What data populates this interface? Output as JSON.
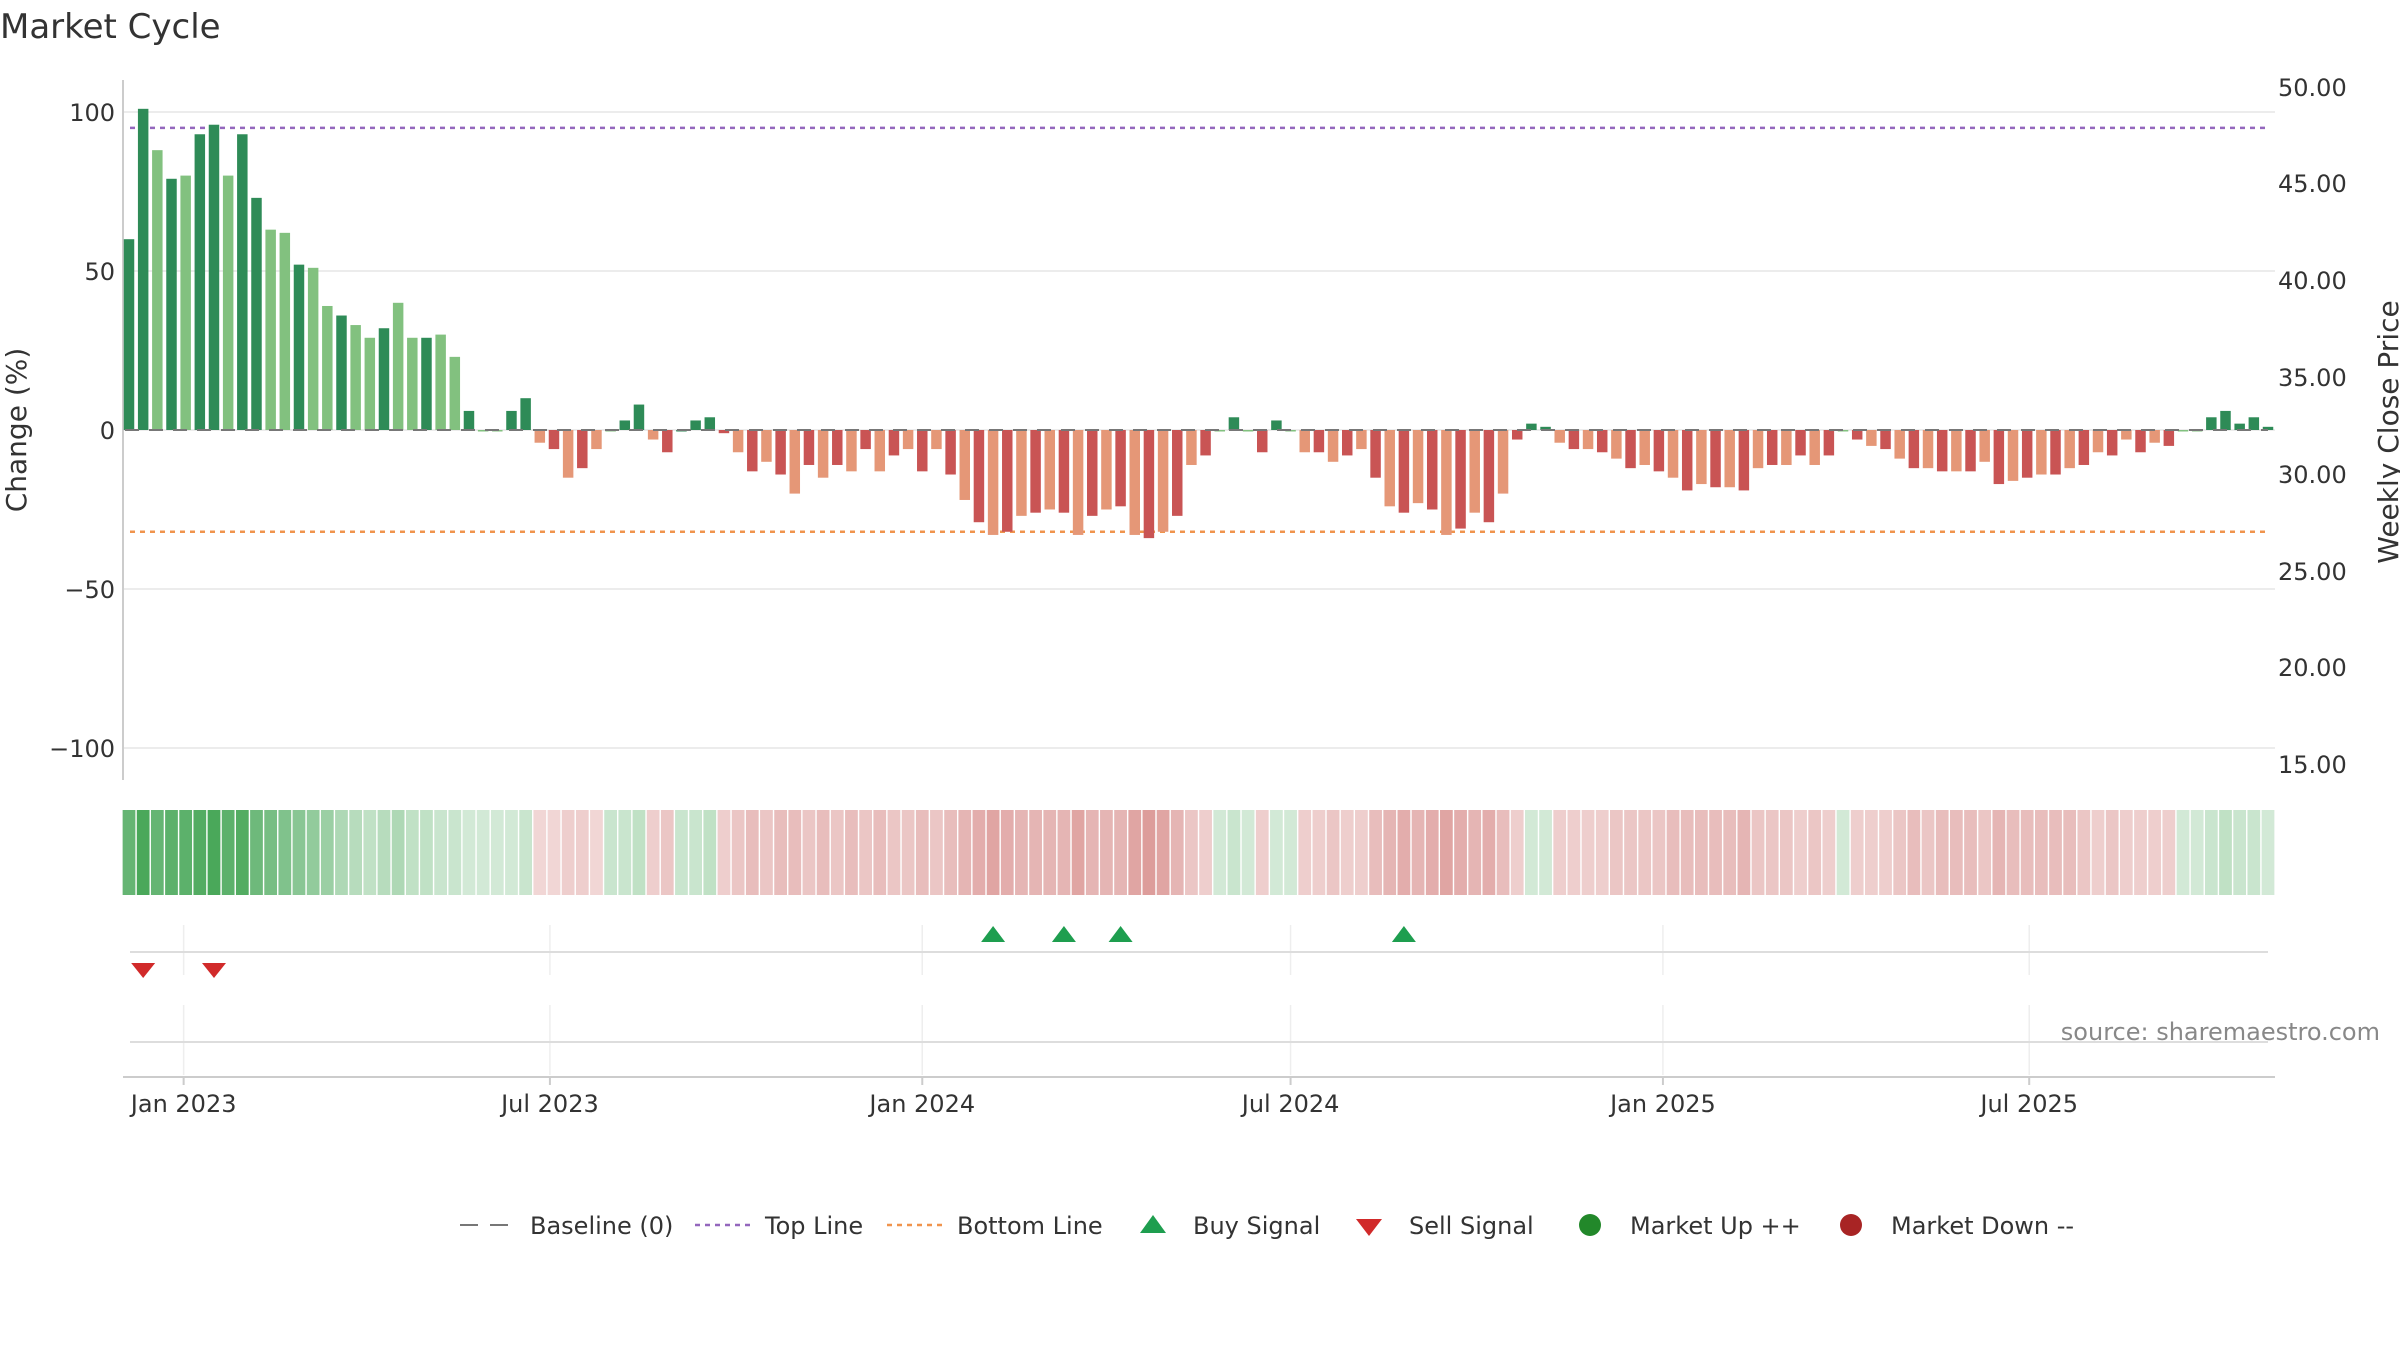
{
  "chart_data": {
    "type": "bar",
    "title": "Market Cycle",
    "ylabel": "Change (%)",
    "y2label": "Weekly Close Price",
    "ylim": [
      -110,
      110
    ],
    "y2lim": [
      14.4,
      51.0
    ],
    "yticks": [
      {
        "value": 100,
        "label": "100"
      },
      {
        "value": 50,
        "label": "50"
      },
      {
        "value": 0,
        "label": "0"
      },
      {
        "value": -50,
        "label": "−50"
      },
      {
        "value": -100,
        "label": "−100"
      }
    ],
    "y2ticks": [
      "50.00",
      "45.00",
      "40.00",
      "35.00",
      "30.00",
      "25.00",
      "20.00",
      "15.00"
    ],
    "start_date": "2022-12-05",
    "end_date": "2025-10-27",
    "xticks": [
      {
        "date": "2023-01-01",
        "label": "Jan 2023"
      },
      {
        "date": "2023-07-01",
        "label": "Jul 2023"
      },
      {
        "date": "2024-01-01",
        "label": "Jan 2024"
      },
      {
        "date": "2024-07-01",
        "label": "Jul 2024"
      },
      {
        "date": "2025-01-01",
        "label": "Jan 2025"
      },
      {
        "date": "2025-07-01",
        "label": "Jul 2025"
      }
    ],
    "baseline": 0,
    "top_line": 95,
    "bottom_line": -32,
    "values": [
      60,
      101,
      88,
      79,
      80,
      93,
      96,
      80,
      93,
      73,
      63,
      62,
      52,
      51,
      39,
      36,
      33,
      29,
      32,
      40,
      29,
      29,
      30,
      23,
      6,
      0,
      0,
      6,
      10,
      -4,
      -6,
      -15,
      -12,
      -6,
      0,
      3,
      8,
      -3,
      -7,
      0,
      3,
      4,
      -1,
      -7,
      -13,
      -10,
      -14,
      -20,
      -11,
      -15,
      -11,
      -13,
      -6,
      -13,
      -8,
      -6,
      -13,
      -6,
      -14,
      -22,
      -29,
      -33,
      -32,
      -27,
      -26,
      -25,
      -26,
      -33,
      -27,
      -25,
      -24,
      -33,
      -34,
      -32,
      -27,
      -11,
      -8,
      0,
      4,
      0,
      -7,
      3,
      0,
      -7,
      -7,
      -10,
      -8,
      -6,
      -15,
      -24,
      -26,
      -23,
      -25,
      -33,
      -31,
      -26,
      -29,
      -20,
      -3,
      2,
      1,
      -4,
      -6,
      -6,
      -7,
      -9,
      -12,
      -11,
      -13,
      -15,
      -19,
      -17,
      -18,
      -18,
      -19,
      -12,
      -11,
      -11,
      -8,
      -11,
      -8,
      0,
      -3,
      -5,
      -6,
      -9,
      -12,
      -12,
      -13,
      -13,
      -13,
      -10,
      -17,
      -16,
      -15,
      -14,
      -14,
      -12,
      -11,
      -7,
      -8,
      -3,
      -7,
      -4,
      -5,
      0,
      0,
      4,
      6,
      2,
      4,
      1
    ],
    "strength": [
      0.85,
      1.0,
      0.85,
      0.9,
      0.9,
      0.95,
      1.0,
      0.9,
      0.95,
      0.8,
      0.75,
      0.7,
      0.65,
      0.6,
      0.55,
      0.45,
      0.4,
      0.35,
      0.4,
      0.45,
      0.35,
      0.35,
      0.3,
      0.3,
      0.25,
      0.2,
      0.25,
      0.25,
      0.3,
      0.25,
      0.25,
      0.3,
      0.3,
      0.25,
      0.3,
      0.3,
      0.35,
      0.3,
      0.35,
      0.3,
      0.3,
      0.35,
      0.3,
      0.35,
      0.4,
      0.35,
      0.4,
      0.4,
      0.35,
      0.4,
      0.35,
      0.4,
      0.35,
      0.4,
      0.35,
      0.35,
      0.4,
      0.35,
      0.4,
      0.45,
      0.5,
      0.55,
      0.5,
      0.45,
      0.45,
      0.45,
      0.45,
      0.55,
      0.45,
      0.45,
      0.45,
      0.55,
      0.6,
      0.55,
      0.45,
      0.35,
      0.3,
      0.25,
      0.3,
      0.25,
      0.3,
      0.25,
      0.2,
      0.3,
      0.3,
      0.35,
      0.3,
      0.3,
      0.4,
      0.45,
      0.5,
      0.45,
      0.5,
      0.55,
      0.5,
      0.45,
      0.5,
      0.4,
      0.3,
      0.25,
      0.25,
      0.3,
      0.3,
      0.3,
      0.3,
      0.35,
      0.35,
      0.35,
      0.35,
      0.4,
      0.4,
      0.4,
      0.4,
      0.4,
      0.45,
      0.35,
      0.35,
      0.35,
      0.3,
      0.35,
      0.3,
      0.25,
      0.3,
      0.3,
      0.3,
      0.35,
      0.4,
      0.35,
      0.4,
      0.4,
      0.4,
      0.35,
      0.45,
      0.4,
      0.4,
      0.4,
      0.4,
      0.4,
      0.35,
      0.3,
      0.35,
      0.3,
      0.3,
      0.3,
      0.3,
      0.25,
      0.25,
      0.3,
      0.35,
      0.3,
      0.3,
      0.25
    ],
    "buy_signals": [
      "2024-02-05",
      "2024-03-11",
      "2024-04-08",
      "2024-08-26"
    ],
    "sell_signals": [
      "2022-12-12",
      "2023-01-16"
    ],
    "source": "source: sharemaestro.com",
    "grid": true,
    "legend_position": "bottom-center",
    "legend": [
      {
        "key": "baseline",
        "label": "Baseline (0)"
      },
      {
        "key": "top",
        "label": "Top Line"
      },
      {
        "key": "bottom",
        "label": "Bottom Line"
      },
      {
        "key": "buy",
        "label": "Buy Signal"
      },
      {
        "key": "sell",
        "label": "Sell Signal"
      },
      {
        "key": "up",
        "label": "Market Up ++"
      },
      {
        "key": "down",
        "label": "Market Down --"
      }
    ]
  },
  "colors": {
    "pos_dark": "#2e8b57",
    "pos_light": "#82c17f",
    "neg_dark": "#c95454",
    "neg_light": "#e59777",
    "heat_green": "#4aa85a",
    "heat_red": "#c65b58",
    "top_line": "#9467bd",
    "bottom_line": "#f0944d",
    "baseline": "#777777",
    "buy": "#1e9e4f",
    "sell": "#d12a2a",
    "market_up": "#22882a",
    "market_down": "#a82424",
    "grid": "#e6e6e6",
    "axis": "#cccccc"
  }
}
